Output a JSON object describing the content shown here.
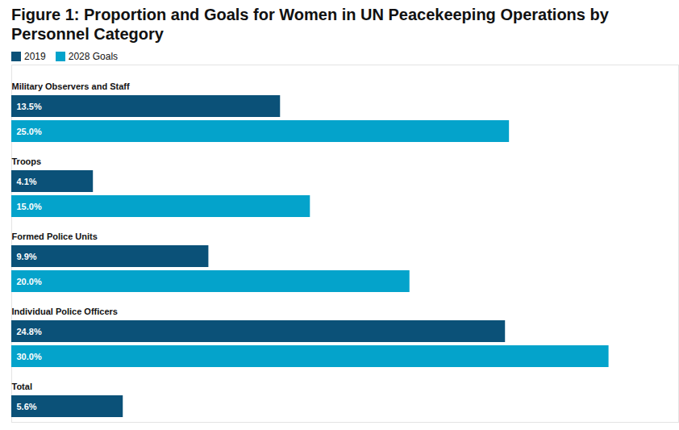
{
  "chart_data": {
    "type": "bar",
    "orientation": "horizontal",
    "title": "Figure 1: Proportion and Goals for Women in UN Peacekeeping Operations by Personnel Category",
    "categories": [
      "Military Observers and Staff",
      "Troops",
      "Formed Police Units",
      "Individual Police Officers",
      "Total"
    ],
    "series": [
      {
        "name": "2019",
        "color": "#0b5178",
        "values": [
          13.5,
          4.1,
          9.9,
          24.8,
          5.6
        ],
        "value_labels": [
          "13.5%",
          "4.1%",
          "9.9%",
          "24.8%",
          "5.6%"
        ]
      },
      {
        "name": "2028 Goals",
        "color": "#04a3cb",
        "values": [
          25.0,
          15.0,
          20.0,
          30.0,
          null
        ],
        "value_labels": [
          "25.0%",
          "15.0%",
          "20.0%",
          "30.0%",
          null
        ]
      }
    ],
    "xlim": [
      0,
      33.5
    ],
    "grid": false,
    "legend": "top-left",
    "data_labels": true,
    "tick_labels": false
  }
}
